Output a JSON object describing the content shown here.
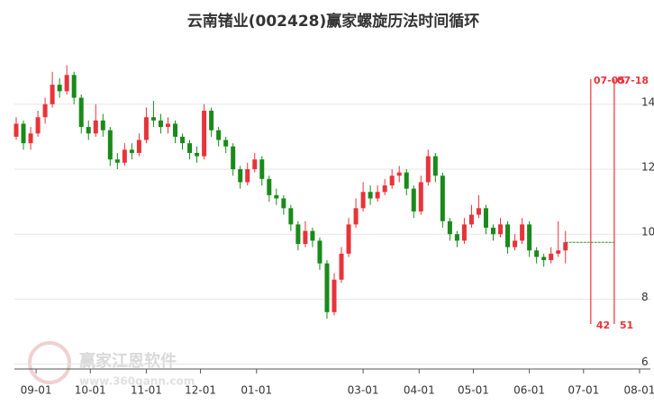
{
  "chart_data": {
    "type": "candlestick",
    "title": "云南锗业(002428)赢家螺旋历法时间循环",
    "watermark": "赢家江恩软件",
    "watermark_url": "www.360gann.com",
    "xlim": [
      -12,
      340
    ],
    "ylim": [
      5.85,
      16.1
    ],
    "xticks": [
      {
        "value": 0,
        "label": "09-01"
      },
      {
        "value": 30,
        "label": "10-01"
      },
      {
        "value": 61,
        "label": "11-01"
      },
      {
        "value": 91,
        "label": "12-01"
      },
      {
        "value": 122,
        "label": "01-01"
      },
      {
        "value": 181,
        "label": "03-01"
      },
      {
        "value": 212,
        "label": "04-01"
      },
      {
        "value": 242,
        "label": "05-01"
      },
      {
        "value": 273,
        "label": "06-01"
      },
      {
        "value": 303,
        "label": "07-01"
      },
      {
        "value": 334,
        "label": "08-01"
      }
    ],
    "yticks": [
      6,
      8,
      10,
      12,
      14
    ],
    "up_color": "#e8333a",
    "down_color": "#1a8a1a",
    "reference_color": "#2a9a2a",
    "cycle_lines": [
      {
        "label": "07-05",
        "x": 307,
        "count": 42
      },
      {
        "label": "07-18",
        "x": 320,
        "count": 51
      }
    ],
    "x": [
      -11,
      -7,
      -3,
      1,
      5,
      9,
      13,
      17,
      21,
      25,
      29,
      33,
      37,
      41,
      45,
      49,
      53,
      57,
      61,
      65,
      69,
      73,
      77,
      81,
      85,
      89,
      93,
      97,
      101,
      105,
      109,
      113,
      117,
      121,
      125,
      129,
      133,
      137,
      141,
      145,
      149,
      153,
      157,
      161,
      165,
      169,
      173,
      177,
      181,
      185,
      189,
      193,
      197,
      201,
      205,
      209,
      213,
      217,
      221,
      225,
      229,
      233,
      237,
      241,
      245,
      249,
      253,
      257,
      261,
      265,
      269,
      273,
      277,
      281,
      285,
      289,
      293
    ],
    "open": [
      13.0,
      13.4,
      12.8,
      13.1,
      13.6,
      14.0,
      14.6,
      14.4,
      14.9,
      14.2,
      13.3,
      13.1,
      13.5,
      13.2,
      12.3,
      12.2,
      12.6,
      12.5,
      12.9,
      13.6,
      13.5,
      13.3,
      13.4,
      13.0,
      12.8,
      12.5,
      12.4,
      13.8,
      13.2,
      12.9,
      12.7,
      12.0,
      11.6,
      12.0,
      12.3,
      11.7,
      11.2,
      11.1,
      10.8,
      10.3,
      9.7,
      10.1,
      9.8,
      9.1,
      7.6,
      8.6,
      9.4,
      10.3,
      10.8,
      11.3,
      11.1,
      11.3,
      11.5,
      11.8,
      11.9,
      11.4,
      10.7,
      11.6,
      12.4,
      11.8,
      10.4,
      10.0,
      9.8,
      10.3,
      10.6,
      10.8,
      10.2,
      10.0,
      10.3,
      9.6,
      9.8,
      10.3,
      9.5,
      9.3,
      9.2,
      9.4,
      9.5
    ],
    "close": [
      13.4,
      12.8,
      13.1,
      13.6,
      14.0,
      14.6,
      14.4,
      14.9,
      14.2,
      13.3,
      13.1,
      13.5,
      13.2,
      12.3,
      12.2,
      12.6,
      12.5,
      12.9,
      13.6,
      13.5,
      13.3,
      13.4,
      13.0,
      12.8,
      12.5,
      12.4,
      13.8,
      13.2,
      12.9,
      12.7,
      12.0,
      11.6,
      12.0,
      12.3,
      11.7,
      11.2,
      11.1,
      10.8,
      10.3,
      9.7,
      10.1,
      9.8,
      9.1,
      7.6,
      8.6,
      9.4,
      10.3,
      10.8,
      11.3,
      11.1,
      11.3,
      11.5,
      11.8,
      11.9,
      11.4,
      10.7,
      11.6,
      12.4,
      11.8,
      10.4,
      10.0,
      9.8,
      10.3,
      10.6,
      10.8,
      10.2,
      10.0,
      10.3,
      9.6,
      9.8,
      10.3,
      9.5,
      9.3,
      9.2,
      9.4,
      9.5,
      9.75
    ],
    "high": [
      13.6,
      13.5,
      13.3,
      13.8,
      14.2,
      15.0,
      14.8,
      15.2,
      15.0,
      14.3,
      13.5,
      14.0,
      13.7,
      13.3,
      12.5,
      12.8,
      12.8,
      13.1,
      13.9,
      14.1,
      13.7,
      13.6,
      13.5,
      13.1,
      12.9,
      12.7,
      14.0,
      13.9,
      13.3,
      13.0,
      12.8,
      12.1,
      12.2,
      12.5,
      12.4,
      11.8,
      11.4,
      11.2,
      10.9,
      10.4,
      10.4,
      10.2,
      9.9,
      9.2,
      8.8,
      9.6,
      10.5,
      11.1,
      11.6,
      11.5,
      11.5,
      11.7,
      12.0,
      12.1,
      12.0,
      11.5,
      11.8,
      12.6,
      12.5,
      11.9,
      10.5,
      10.1,
      10.5,
      10.9,
      11.2,
      10.9,
      10.3,
      10.5,
      10.4,
      10.0,
      10.5,
      10.4,
      9.6,
      9.4,
      9.6,
      10.4,
      10.1
    ],
    "low": [
      12.9,
      12.6,
      12.6,
      13.0,
      13.4,
      13.9,
      14.2,
      14.3,
      14.0,
      13.1,
      12.9,
      13.0,
      13.0,
      12.1,
      12.0,
      12.1,
      12.3,
      12.4,
      12.8,
      13.3,
      13.1,
      13.1,
      12.8,
      12.6,
      12.3,
      12.2,
      12.3,
      13.0,
      12.7,
      12.5,
      11.8,
      11.4,
      11.5,
      11.9,
      11.5,
      11.0,
      10.9,
      10.6,
      10.1,
      9.5,
      9.6,
      9.6,
      8.9,
      7.4,
      7.5,
      8.5,
      9.3,
      10.2,
      10.7,
      10.9,
      11.0,
      11.2,
      11.4,
      11.6,
      11.2,
      10.5,
      10.6,
      11.5,
      11.6,
      10.2,
      9.8,
      9.6,
      9.7,
      10.2,
      10.5,
      10.0,
      9.8,
      9.9,
      9.4,
      9.5,
      9.7,
      9.3,
      9.1,
      9.0,
      9.1,
      9.3,
      9.1
    ]
  }
}
